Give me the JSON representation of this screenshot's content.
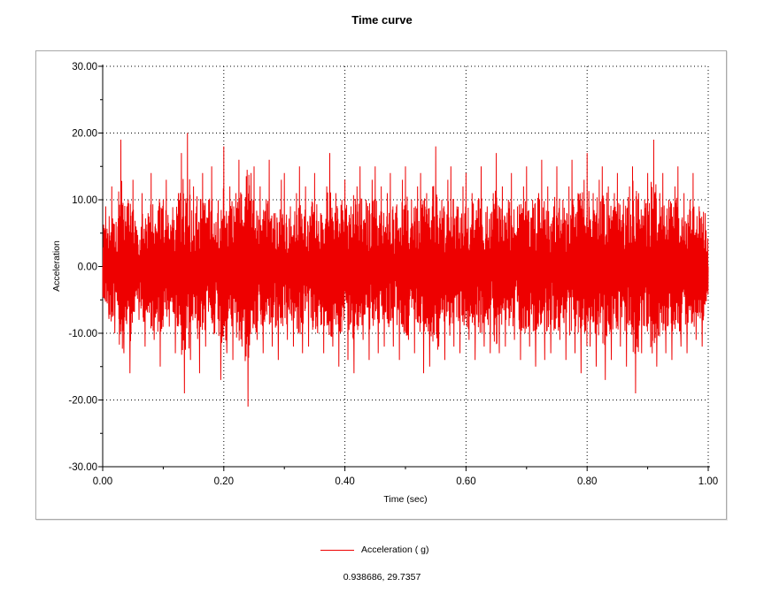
{
  "chart_data": {
    "type": "line",
    "title": "Time curve",
    "xlabel": "Time (sec)",
    "ylabel": "Acceleration",
    "xlim": [
      0,
      1
    ],
    "ylim": [
      -30,
      30
    ],
    "x_ticks": [
      "0.00",
      "0.20",
      "0.40",
      "0.60",
      "0.80",
      "1.00"
    ],
    "y_ticks": [
      "30.00",
      "20.00",
      "10.00",
      "0.00",
      "-10.00",
      "-20.00",
      "-30.00"
    ],
    "grid": true,
    "legend_position": "bottom-center",
    "series": [
      {
        "name": "Acceleration ( g)",
        "color": "#ee0000",
        "x": [
          0.0,
          0.005,
          0.01,
          0.015,
          0.02,
          0.025,
          0.03,
          0.035,
          0.04,
          0.045,
          0.05,
          0.055,
          0.06,
          0.065,
          0.07,
          0.075,
          0.08,
          0.085,
          0.09,
          0.095,
          0.1,
          0.105,
          0.11,
          0.115,
          0.12,
          0.125,
          0.13,
          0.135,
          0.14,
          0.145,
          0.15,
          0.155,
          0.16,
          0.165,
          0.17,
          0.175,
          0.18,
          0.185,
          0.19,
          0.195,
          0.2,
          0.205,
          0.21,
          0.215,
          0.22,
          0.225,
          0.23,
          0.235,
          0.24,
          0.245,
          0.25,
          0.255,
          0.26,
          0.265,
          0.27,
          0.275,
          0.28,
          0.285,
          0.29,
          0.295,
          0.3,
          0.305,
          0.31,
          0.315,
          0.32,
          0.325,
          0.33,
          0.335,
          0.34,
          0.345,
          0.35,
          0.355,
          0.36,
          0.365,
          0.37,
          0.375,
          0.38,
          0.385,
          0.39,
          0.395,
          0.4,
          0.405,
          0.41,
          0.415,
          0.42,
          0.425,
          0.43,
          0.435,
          0.44,
          0.445,
          0.45,
          0.455,
          0.46,
          0.465,
          0.47,
          0.475,
          0.48,
          0.485,
          0.49,
          0.495,
          0.5,
          0.505,
          0.51,
          0.515,
          0.52,
          0.525,
          0.53,
          0.535,
          0.54,
          0.545,
          0.55,
          0.555,
          0.56,
          0.565,
          0.57,
          0.575,
          0.58,
          0.585,
          0.59,
          0.595,
          0.6,
          0.605,
          0.61,
          0.615,
          0.62,
          0.625,
          0.63,
          0.635,
          0.64,
          0.645,
          0.65,
          0.655,
          0.66,
          0.665,
          0.67,
          0.675,
          0.68,
          0.685,
          0.69,
          0.695,
          0.7,
          0.705,
          0.71,
          0.715,
          0.72,
          0.725,
          0.73,
          0.735,
          0.74,
          0.745,
          0.75,
          0.755,
          0.76,
          0.765,
          0.77,
          0.775,
          0.78,
          0.785,
          0.79,
          0.795,
          0.8,
          0.805,
          0.81,
          0.815,
          0.82,
          0.825,
          0.83,
          0.835,
          0.84,
          0.845,
          0.85,
          0.855,
          0.86,
          0.865,
          0.87,
          0.875,
          0.88,
          0.885,
          0.89,
          0.895,
          0.9,
          0.905,
          0.91,
          0.915,
          0.92,
          0.925,
          0.93,
          0.935,
          0.94,
          0.945,
          0.95,
          0.955,
          0.96,
          0.965,
          0.97,
          0.975,
          0.98,
          0.985,
          0.99,
          0.995,
          1.0
        ],
        "y": [
          0,
          9,
          -7,
          12,
          -10,
          6,
          19,
          -13,
          9,
          -16,
          13,
          6,
          -8,
          11,
          -12,
          8,
          14,
          -11,
          5,
          -15,
          10,
          13,
          -9,
          7,
          -13,
          11,
          17,
          -19,
          20,
          -14,
          12,
          9,
          -16,
          14,
          -12,
          10,
          15,
          -10,
          8,
          -17,
          18,
          -13,
          12,
          -14,
          11,
          16,
          -12,
          9,
          -21,
          14,
          15,
          -11,
          12,
          -13,
          10,
          16,
          -12,
          8,
          -14,
          13,
          14,
          -11,
          9,
          -12,
          11,
          15,
          -13,
          12,
          -12,
          9,
          14,
          -10,
          8,
          -13,
          12,
          17,
          -12,
          11,
          -15,
          10,
          13,
          -14,
          9,
          -16,
          12,
          15,
          -11,
          10,
          -14,
          13,
          15,
          -13,
          12,
          -12,
          11,
          14,
          -12,
          9,
          -14,
          13,
          15,
          -11,
          10,
          -13,
          12,
          14,
          -16,
          11,
          -15,
          12,
          18,
          -12,
          10,
          -14,
          13,
          15,
          -12,
          9,
          -13,
          12,
          14,
          -11,
          11,
          -14,
          10,
          15,
          -12,
          9,
          -13,
          11,
          17,
          -13,
          12,
          -12,
          10,
          14,
          -11,
          9,
          -14,
          12,
          15,
          -12,
          10,
          -15,
          11,
          16,
          -14,
          12,
          -13,
          9,
          15,
          -11,
          10,
          -14,
          12,
          16,
          -13,
          11,
          -16,
          13,
          17,
          -12,
          11,
          -15,
          13,
          15,
          -17,
          12,
          -14,
          11,
          14,
          -12,
          10,
          -15,
          12,
          15,
          -19,
          11,
          -13,
          10,
          14,
          -12,
          19,
          -15,
          11,
          14,
          -13,
          10,
          -14,
          12,
          15,
          -12,
          11,
          -13,
          10,
          14,
          -11,
          9,
          -12,
          8,
          0
        ]
      }
    ]
  },
  "legend": {
    "label": "Acceleration ( g)"
  },
  "cursor_readout": "0.938686, 29.7357"
}
